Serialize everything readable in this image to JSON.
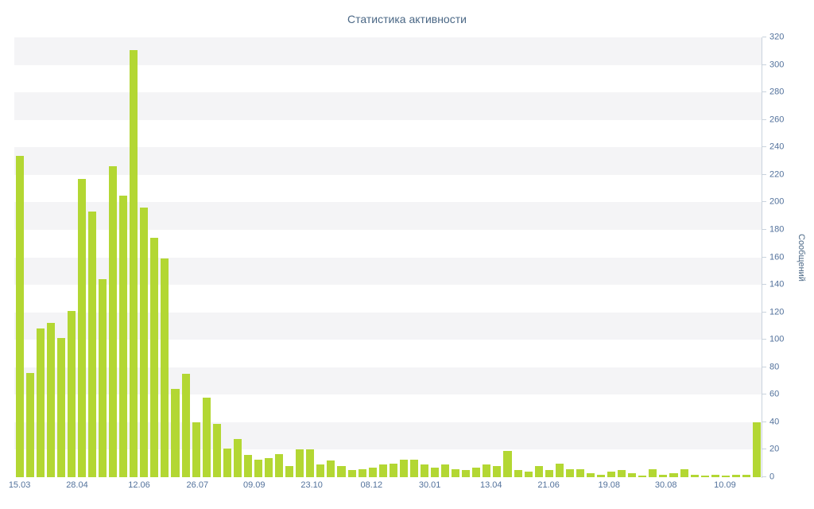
{
  "chart_data": {
    "type": "bar",
    "title": "Статистика активности",
    "xlabel": "",
    "ylabel": "Сообщений",
    "ylim": [
      0,
      320
    ],
    "y_tick_interval": 20,
    "y_axis_position": "right",
    "grid": "alternating-horizontal-bands",
    "legend": "none",
    "colors": {
      "bar": "#b3d733",
      "band": "#f4f4f6",
      "title_text": "#4a6785",
      "axis_text": "#53729c",
      "axis_line": "#c9d3dd"
    },
    "x_tick_labels": [
      "15.03",
      "28.04",
      "12.06",
      "26.07",
      "09.09",
      "23.10",
      "08.12",
      "30.01",
      "13.04",
      "21.06",
      "19.08",
      "30.08",
      "10.09"
    ],
    "x_tick_positions_pct": [
      0.7,
      8.4,
      16.7,
      24.5,
      32.1,
      39.8,
      47.8,
      55.6,
      63.8,
      71.5,
      79.6,
      87.2,
      95.1
    ],
    "values": [
      234,
      76,
      108,
      112,
      101,
      121,
      217,
      193,
      144,
      226,
      205,
      311,
      196,
      174,
      159,
      64,
      75,
      40,
      58,
      39,
      21,
      28,
      16,
      13,
      14,
      17,
      8,
      20,
      20,
      9,
      12,
      8,
      5,
      6,
      7,
      9,
      10,
      13,
      13,
      9,
      7,
      9,
      6,
      5,
      7,
      9,
      8,
      19,
      5,
      4,
      8,
      5,
      10,
      6,
      6,
      3,
      2,
      4,
      5,
      3,
      1,
      6,
      2,
      3,
      6,
      2,
      1,
      2,
      1,
      2,
      2,
      40
    ]
  }
}
